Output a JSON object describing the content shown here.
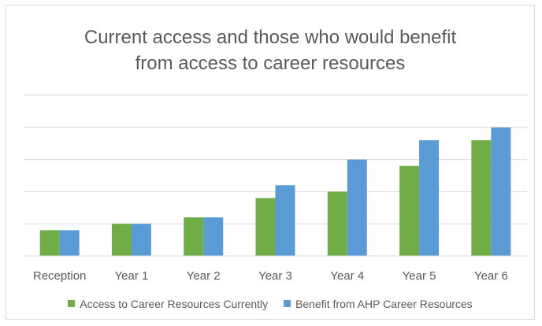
{
  "chart_data": {
    "type": "bar",
    "title": [
      "Current access and those who would benefit",
      "from access to career resources"
    ],
    "categories": [
      "Reception",
      "Year 1",
      "Year 2",
      "Year 3",
      "Year 4",
      "Year 5",
      "Year 6"
    ],
    "series": [
      {
        "name": "Access to Career Resources Currently",
        "color": "#70ad47",
        "values": [
          0.8,
          1.0,
          1.2,
          1.8,
          2.0,
          2.8,
          3.6
        ]
      },
      {
        "name": "Benefit from AHP Career Resources",
        "color": "#5b9bd5",
        "values": [
          0.8,
          1.0,
          1.2,
          2.2,
          3.0,
          3.6,
          4.0
        ]
      }
    ],
    "ylim": [
      0,
      5
    ],
    "y_gridlines": [
      1,
      2,
      3,
      4,
      5
    ],
    "y_tick_labels_visible": false,
    "grid": true,
    "legend": "bottom"
  }
}
